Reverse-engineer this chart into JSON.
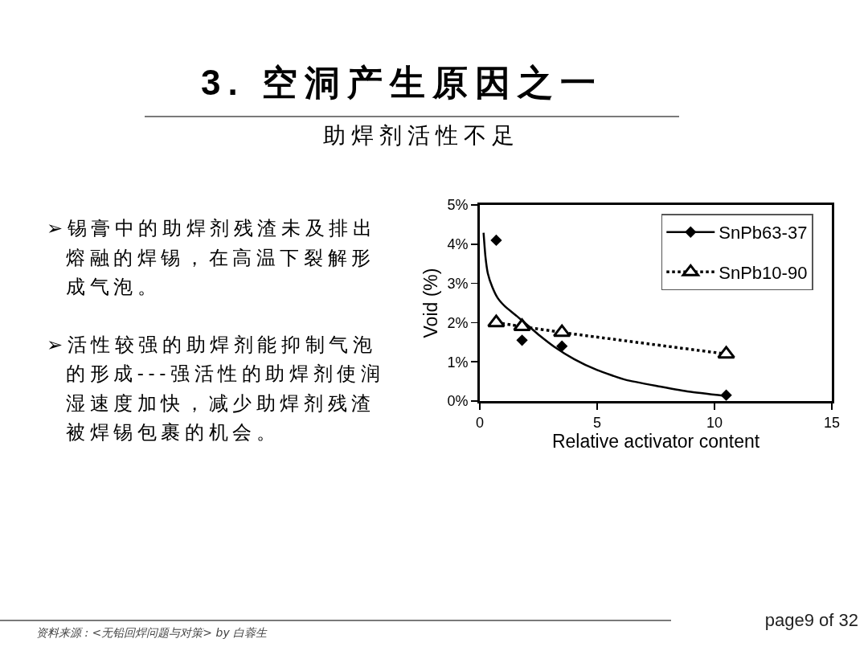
{
  "chart_data": {
    "type": "scatter",
    "title": "3. 空洞产生原因之一",
    "subtitle": "助焊剂活性不足",
    "xlabel": "Relative activator content",
    "ylabel": "Void (%)",
    "xlim": [
      0,
      15
    ],
    "xticks": [
      0,
      5,
      10,
      15
    ],
    "ylim": [
      0,
      5
    ],
    "yticks": [
      {
        "value": 0,
        "label": "0%"
      },
      {
        "value": 1,
        "label": "1%"
      },
      {
        "value": 2,
        "label": "2%"
      },
      {
        "value": 3,
        "label": "3%"
      },
      {
        "value": 4,
        "label": "4%"
      },
      {
        "value": 5,
        "label": "5%"
      }
    ],
    "legend": "top right",
    "series": [
      {
        "name": "SnPb63-37",
        "marker": "diamond",
        "color": "#000000",
        "x": [
          0.7,
          1.8,
          3.5,
          10.5
        ],
        "values": [
          4.1,
          1.55,
          1.4,
          0.15
        ]
      },
      {
        "type": "line",
        "marker": "none",
        "line_style": "solid",
        "color": "#000000",
        "x": [
          0.16,
          0.24,
          0.34,
          0.53,
          0.77,
          1.08,
          1.57,
          2.06,
          2.55,
          3.16,
          4.02,
          5.0,
          6.22,
          7.69,
          8.91,
          10.47
        ],
        "values": [
          4.29,
          3.68,
          3.26,
          2.91,
          2.62,
          2.41,
          2.17,
          1.92,
          1.67,
          1.39,
          1.07,
          0.79,
          0.54,
          0.37,
          0.24,
          0.13
        ]
      },
      {
        "name": "SnPb10-90",
        "type": "line",
        "marker": "triangle",
        "line_style": "dotted",
        "color": "#000000",
        "x": [
          0.7,
          1.8,
          3.5,
          10.5
        ],
        "values": [
          2.0,
          1.9,
          1.75,
          1.2
        ]
      }
    ],
    "annotations": [
      "➢锡膏中的助焊剂残渣未及排出熔融的焊锡，在高温下裂解形成气泡。",
      "➢活性较强的助焊剂能抑制气泡的形成---强活性的助焊剂使润湿速度加快，减少助焊剂残渣被焊锡包裹的机会。",
      "资料来源 : <无铅回焊问题与对策> by 白蓉生",
      "page9 of 32"
    ]
  }
}
